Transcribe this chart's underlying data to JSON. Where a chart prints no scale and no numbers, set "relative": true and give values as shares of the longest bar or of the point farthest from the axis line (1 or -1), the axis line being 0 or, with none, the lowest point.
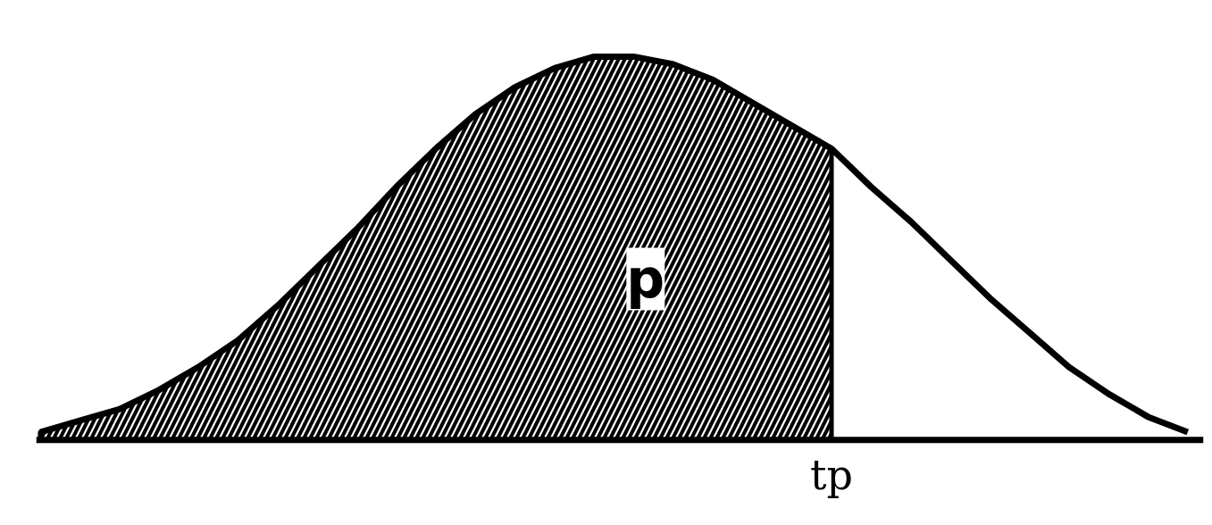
{
  "chart_data": {
    "type": "line",
    "relative": true,
    "categories": [
      null,
      null,
      null,
      null,
      null,
      null,
      null,
      null,
      null,
      null,
      null,
      null,
      null,
      null,
      null,
      null,
      null,
      null,
      null,
      null,
      null,
      null,
      null,
      null,
      null,
      null,
      null,
      null,
      null,
      null
    ],
    "series": [
      {
        "type": "area",
        "color": "#000000",
        "values": [
          0.02,
          0.05,
          0.08,
          0.13,
          0.19,
          0.26,
          0.35,
          0.45,
          0.55,
          0.66,
          0.76,
          0.85,
          0.92,
          0.97,
          1.0,
          1.0,
          0.98,
          0.94,
          0.88,
          0.82,
          0.76,
          null,
          null,
          null,
          null,
          null,
          null,
          null,
          null,
          null
        ]
      },
      {
        "color": "#000000",
        "values": [
          0.02,
          0.05,
          0.08,
          0.13,
          0.19,
          0.26,
          0.35,
          0.45,
          0.55,
          0.66,
          0.76,
          0.85,
          0.92,
          0.97,
          1.0,
          1.0,
          0.98,
          0.94,
          0.88,
          0.82,
          0.76,
          0.66,
          0.57,
          0.47,
          0.37,
          0.28,
          0.19,
          0.12,
          0.06,
          0.02
        ]
      }
    ],
    "annotations": [
      "p",
      "tp"
    ]
  }
}
